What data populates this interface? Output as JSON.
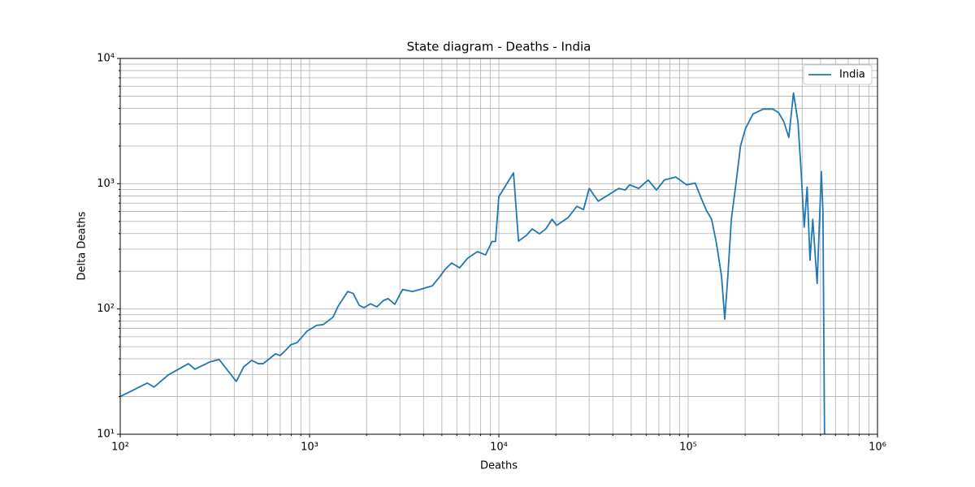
{
  "chart_data": {
    "type": "line",
    "title": "State diagram - Deaths - India",
    "xlabel": "Deaths",
    "ylabel": "Delta Deaths",
    "xscale": "log",
    "yscale": "log",
    "grid": true,
    "legend": "upper right",
    "xlim": [
      100,
      1000000
    ],
    "ylim": [
      10,
      10000
    ],
    "xticks": [
      {
        "value": 100,
        "label": "10²"
      },
      {
        "value": 1000,
        "label": "10³"
      },
      {
        "value": 10000,
        "label": "10⁴"
      },
      {
        "value": 100000,
        "label": "10⁵"
      },
      {
        "value": 1000000,
        "label": "10⁶"
      }
    ],
    "yticks": [
      {
        "value": 10,
        "label": "10¹"
      },
      {
        "value": 100,
        "label": "10²"
      },
      {
        "value": 1000,
        "label": "10³"
      },
      {
        "value": 10000,
        "label": "10⁴"
      }
    ],
    "xminorticks": [
      200,
      300,
      400,
      500,
      600,
      700,
      800,
      900,
      2000,
      3000,
      4000,
      5000,
      6000,
      7000,
      8000,
      9000,
      20000,
      30000,
      40000,
      50000,
      60000,
      70000,
      80000,
      90000,
      200000,
      300000,
      400000,
      500000,
      600000,
      700000,
      800000,
      900000
    ],
    "yminorticks": [
      20,
      30,
      40,
      50,
      60,
      70,
      80,
      90,
      200,
      300,
      400,
      500,
      600,
      700,
      800,
      900,
      2000,
      3000,
      4000,
      5000,
      6000,
      7000,
      8000,
      9000
    ],
    "series": [
      {
        "name": "India",
        "color": "#1f77b4",
        "x": [
          100,
          139,
          151,
          179,
          229,
          248,
          296,
          333,
          410,
          449,
          495,
          536,
          569,
          660,
          700,
          750,
          795,
          860,
          970,
          1090,
          1180,
          1330,
          1410,
          1590,
          1700,
          1830,
          1940,
          2100,
          2270,
          2460,
          2600,
          2820,
          3100,
          3500,
          3950,
          4450,
          4900,
          5200,
          5630,
          6200,
          6840,
          7700,
          8500,
          9200,
          9600,
          10000,
          11950,
          12700,
          13950,
          15000,
          16400,
          17700,
          19100,
          20200,
          23200,
          25800,
          28000,
          30000,
          33500,
          37800,
          43000,
          46500,
          49000,
          54700,
          61500,
          68000,
          74800,
          86000,
          98000,
          109000,
          117000,
          125000,
          133000,
          141000,
          150000,
          156000,
          162000,
          169000,
          178000,
          189000,
          201000,
          220000,
          249000,
          280000,
          300000,
          320000,
          340000,
          360000,
          380000,
          395000,
          410000,
          425000,
          440000,
          455000,
          480000,
          505000,
          515000,
          525000
        ],
        "values": [
          20,
          25.6,
          23.8,
          29.7,
          36.6,
          33,
          37.7,
          39.5,
          26.4,
          34.5,
          38.9,
          36.6,
          36.6,
          43.8,
          42.5,
          47,
          51.7,
          54,
          66.6,
          74,
          75,
          86,
          104,
          138,
          133,
          107,
          102.5,
          110,
          104,
          117,
          121,
          109,
          143,
          138,
          145,
          153,
          183,
          207,
          233,
          213,
          254,
          287,
          270,
          346,
          346,
          790,
          1220,
          348,
          386,
          436,
          398,
          436,
          520,
          465,
          536,
          660,
          622,
          917,
          725,
          812,
          917,
          890,
          980,
          917,
          1070,
          890,
          1070,
          1130,
          980,
          1010,
          770,
          610,
          520,
          335,
          183,
          83,
          183,
          520,
          950,
          2000,
          2770,
          3600,
          3940,
          3940,
          3700,
          3130,
          2340,
          5300,
          3130,
          1250,
          450,
          940,
          245,
          520,
          160,
          1250,
          600,
          10
        ]
      }
    ]
  }
}
